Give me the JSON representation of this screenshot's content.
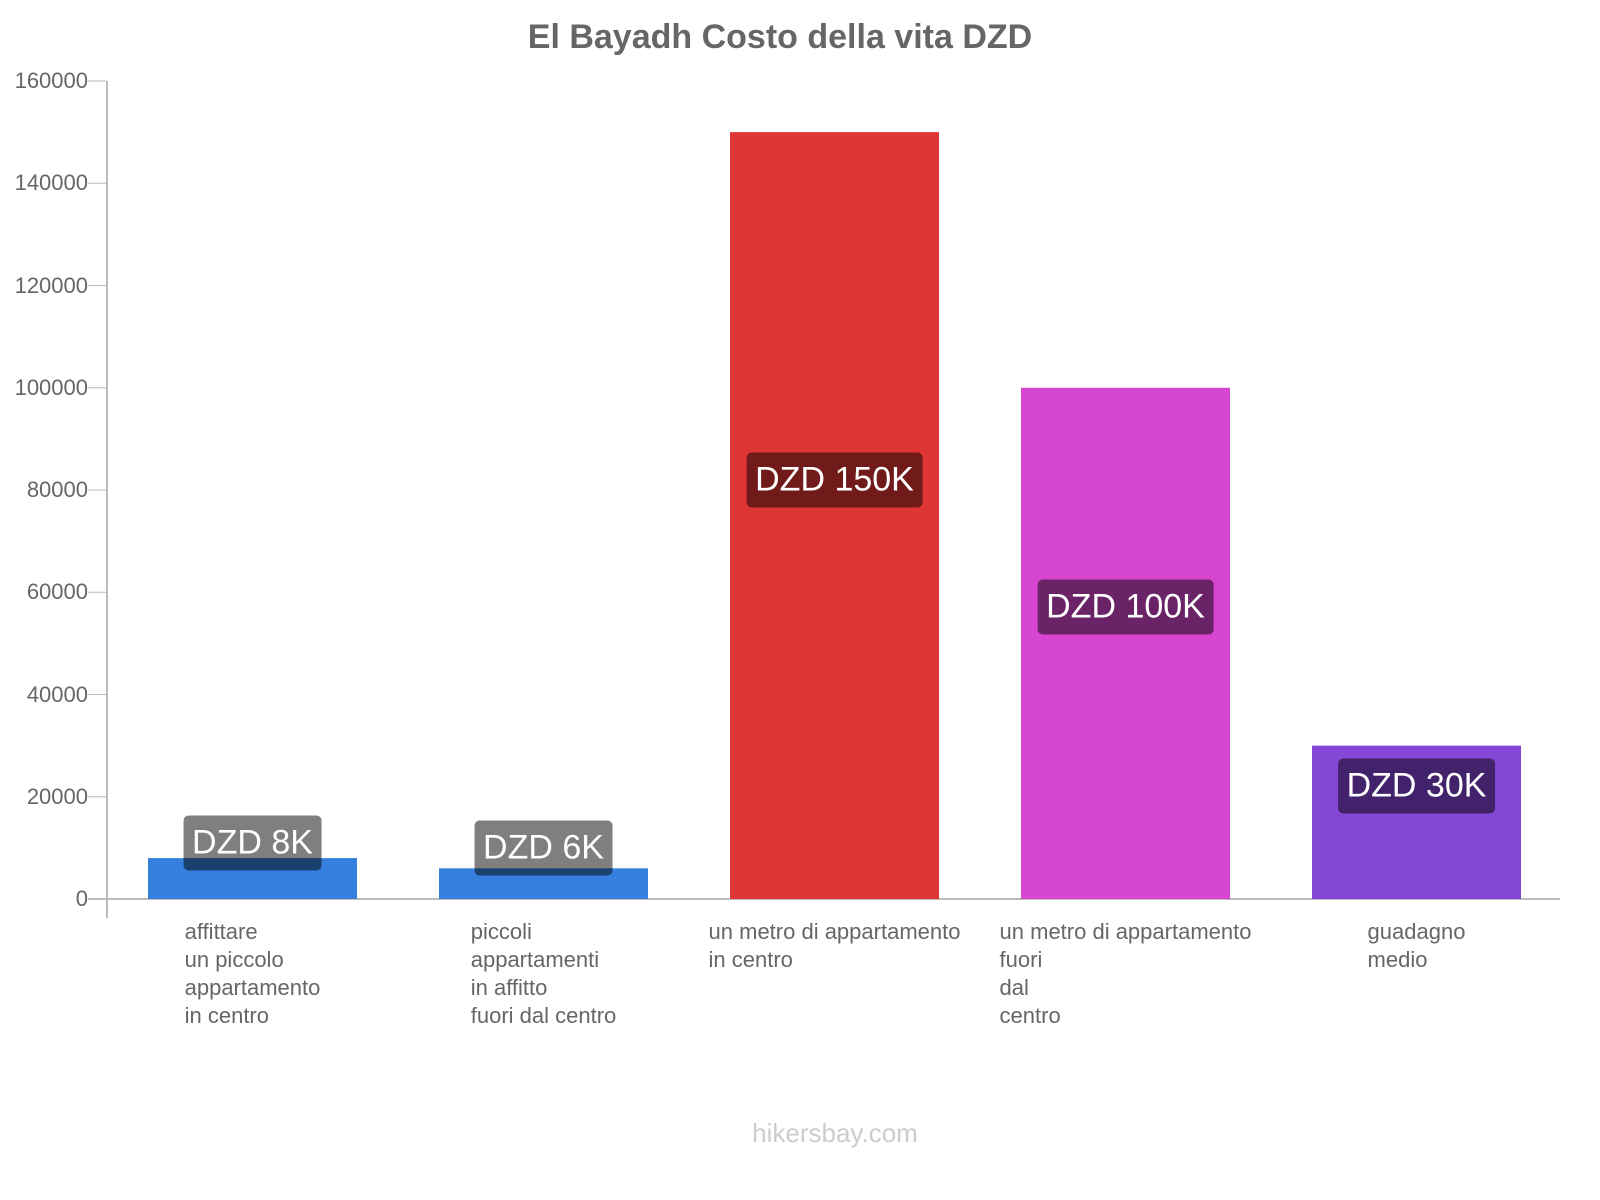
{
  "chart_data": {
    "type": "bar",
    "title": "El Bayadh Costo della vita DZD",
    "categories": [
      [
        "affittare",
        "un piccolo",
        "appartamento",
        "in centro"
      ],
      [
        "piccoli",
        "appartamenti",
        "in affitto",
        "fuori dal centro"
      ],
      [
        "un metro di appartamento",
        "in centro"
      ],
      [
        "un metro di appartamento",
        "fuori",
        "dal",
        "centro"
      ],
      [
        "guadagno",
        "medio"
      ]
    ],
    "values": [
      8000,
      6000,
      150000,
      100000,
      30000
    ],
    "value_labels": [
      "DZD 8K",
      "DZD 6K",
      "DZD 150K",
      "DZD 100K",
      "DZD 30K"
    ],
    "colors": [
      "#3580de",
      "#3580de",
      "#e03535",
      "#d646d0",
      "#8447d6"
    ],
    "ylim": [
      0,
      160000
    ],
    "yticks": [
      "0",
      "20000",
      "40000",
      "60000",
      "80000",
      "100000",
      "120000",
      "140000",
      "160000"
    ],
    "xlabel": "",
    "ylabel": "",
    "grid": false
  },
  "footer": "hikersbay.com"
}
